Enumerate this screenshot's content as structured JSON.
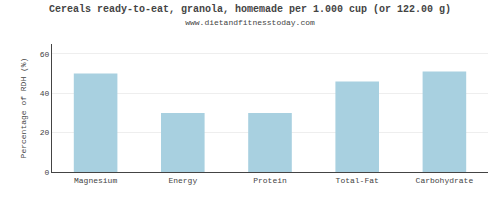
{
  "chart_data": {
    "type": "bar",
    "title": "Cereals ready-to-eat, granola, homemade per 1.000 cup (or 122.00 g)",
    "subtitle": "www.dietandfitnesstoday.com",
    "categories": [
      "Magnesium",
      "Energy",
      "Protein",
      "Total-Fat",
      "Carbohydrate"
    ],
    "values": [
      50,
      30,
      30,
      46,
      51
    ],
    "color": "#a8d0e0",
    "ylabel": "Percentage of RDH (%)",
    "ylim": [
      0,
      65
    ],
    "yticks": [
      0,
      20,
      40,
      60
    ],
    "grid": true
  }
}
